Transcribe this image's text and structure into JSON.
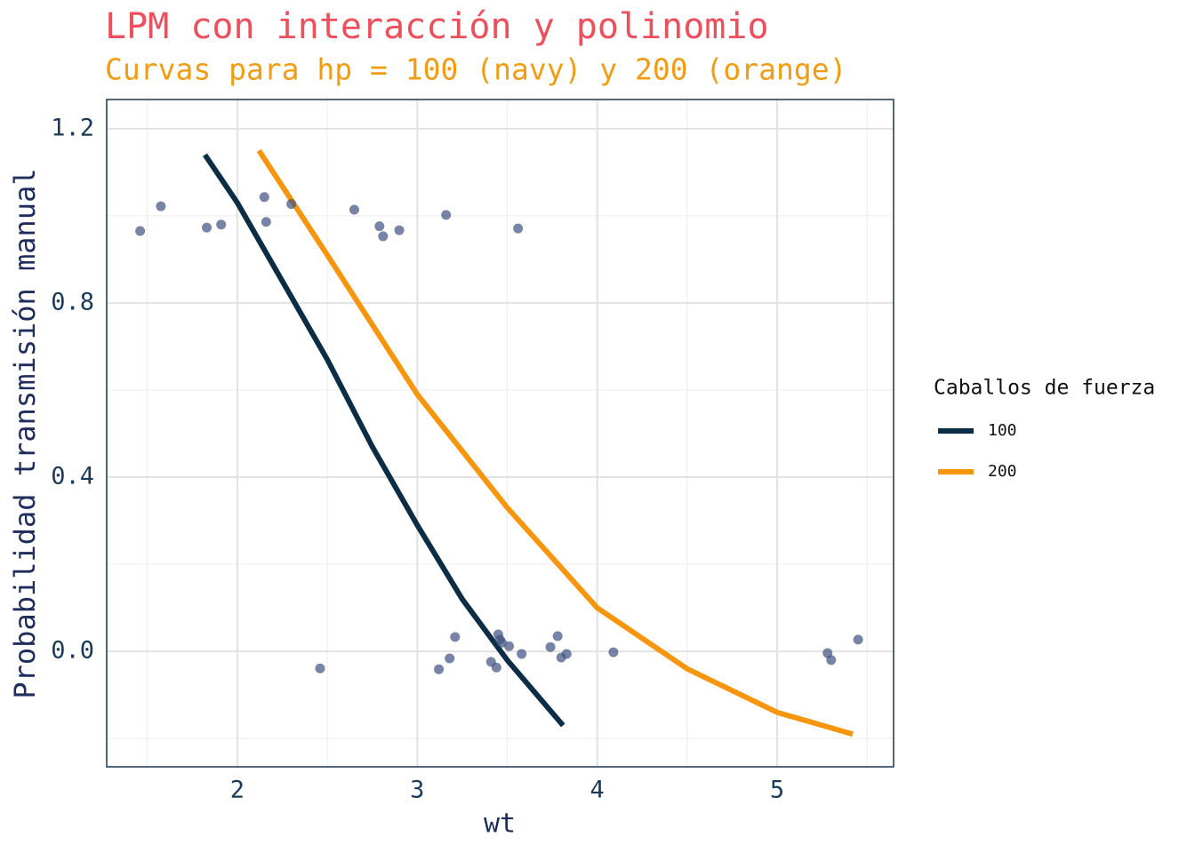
{
  "chart_data": {
    "type": "line",
    "title": "LPM con interacción y polinomio",
    "subtitle": "Curvas para hp = 100 (navy) y 200 (orange)",
    "x_label": "wt",
    "y_label": "Probabilidad transmisión manual",
    "legend_title": "Caballos de fuerza",
    "legend_position": "right",
    "grid": true,
    "xlim": [
      1.274,
      5.647
    ],
    "ylim": [
      -0.265,
      1.267
    ],
    "xticks": [
      2,
      3,
      4,
      5
    ],
    "yticks": [
      {
        "value": 0,
        "label": "0.0"
      },
      0.4,
      0.8,
      1.2
    ],
    "xminor_ticks": [
      1.5,
      2.5,
      3.5,
      4.5,
      5.5
    ],
    "yminor_ticks": [
      -0.2,
      0.2,
      0.6,
      1.0
    ],
    "series": [
      {
        "name": "100",
        "color": "#0b2d45",
        "x": [
          1.82,
          2.0,
          2.25,
          2.5,
          2.75,
          3.0,
          3.25,
          3.5,
          3.81
        ],
        "y": [
          1.14,
          1.03,
          0.85,
          0.67,
          0.47,
          0.29,
          0.12,
          -0.02,
          -0.17
        ]
      },
      {
        "name": "200",
        "color": "#f7960c",
        "x": [
          2.12,
          2.5,
          3.0,
          3.5,
          4.0,
          4.5,
          5.0,
          5.42
        ],
        "y": [
          1.15,
          0.91,
          0.59,
          0.33,
          0.1,
          -0.04,
          -0.14,
          -0.19
        ]
      }
    ],
    "points": {
      "color": "#3d5080",
      "x": [
        1.46,
        1.575,
        1.83,
        1.91,
        2.15,
        2.16,
        2.3,
        2.46,
        2.65,
        2.79,
        2.81,
        2.9,
        3.16,
        3.56,
        3.12,
        3.18,
        3.21,
        3.41,
        3.44,
        3.45,
        3.46,
        3.47,
        3.51,
        3.58,
        3.74,
        3.78,
        3.8,
        3.83,
        4.09,
        5.28,
        5.3,
        5.45
      ],
      "y": [
        0.965,
        1.022,
        0.973,
        0.98,
        1.043,
        0.986,
        1.027,
        -0.039,
        1.014,
        0.976,
        0.953,
        0.967,
        1.002,
        0.971,
        -0.041,
        -0.016,
        0.033,
        -0.024,
        -0.037,
        0.039,
        0.027,
        0.02,
        0.012,
        -0.006,
        0.01,
        0.035,
        -0.014,
        -0.006,
        -0.002,
        -0.004,
        -0.02,
        0.027
      ]
    }
  }
}
